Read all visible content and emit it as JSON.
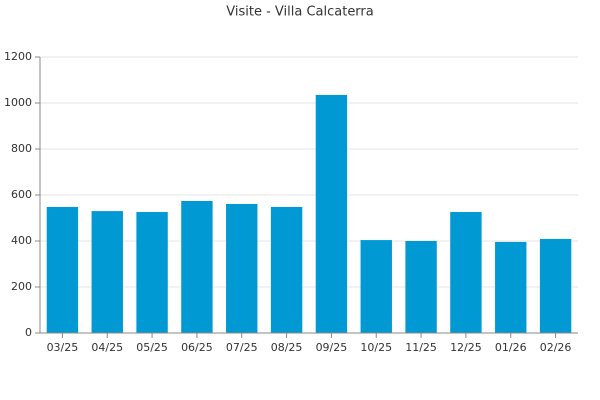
{
  "chart_data": {
    "type": "bar",
    "title": "Visite - Villa Calcaterra",
    "categories": [
      "03/25",
      "04/25",
      "05/25",
      "06/25",
      "07/25",
      "08/25",
      "09/25",
      "10/25",
      "11/25",
      "12/25",
      "01/26",
      "02/26"
    ],
    "values": [
      548,
      530,
      526,
      574,
      561,
      548,
      1035,
      404,
      400,
      526,
      396,
      409
    ],
    "color": "#0099d4",
    "ylim": [
      0,
      1200
    ],
    "yticks": [
      0,
      200,
      400,
      600,
      800,
      1000,
      1200
    ],
    "grid": true
  }
}
